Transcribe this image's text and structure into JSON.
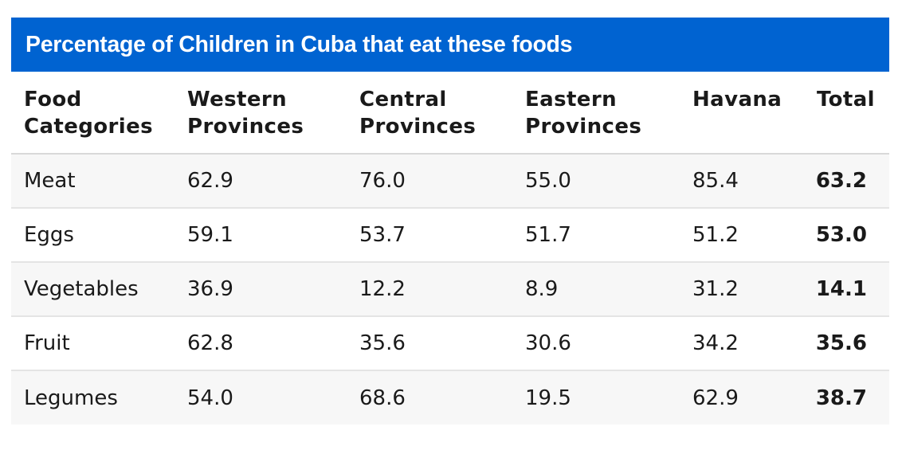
{
  "chart_data": {
    "type": "table",
    "title": "Percentage of Children in Cuba that eat these foods",
    "headers": [
      [
        "Food",
        "Categories"
      ],
      [
        "Western",
        "Provinces"
      ],
      [
        "Central",
        "Provinces"
      ],
      [
        "Eastern",
        "Provinces"
      ],
      [
        "Havana"
      ],
      [
        "Total"
      ]
    ],
    "rows": [
      {
        "category": "Meat",
        "values": [
          "62.9",
          "76.0",
          "55.0",
          "85.4"
        ],
        "total": "63.2"
      },
      {
        "category": "Eggs",
        "values": [
          "59.1",
          "53.7",
          "51.7",
          "51.2"
        ],
        "total": "53.0"
      },
      {
        "category": "Vegetables",
        "values": [
          "36.9",
          "12.2",
          "8.9",
          "31.2"
        ],
        "total": "14.1"
      },
      {
        "category": "Fruit",
        "values": [
          "62.8",
          "35.6",
          "30.6",
          "34.2"
        ],
        "total": "35.6"
      },
      {
        "category": "Legumes",
        "values": [
          "54.0",
          "68.6",
          "19.5",
          "62.9"
        ],
        "total": "38.7"
      }
    ],
    "colors": {
      "title_background": "#0063d1",
      "title_text": "#ffffff",
      "row_stripe": "#f7f7f7"
    }
  }
}
